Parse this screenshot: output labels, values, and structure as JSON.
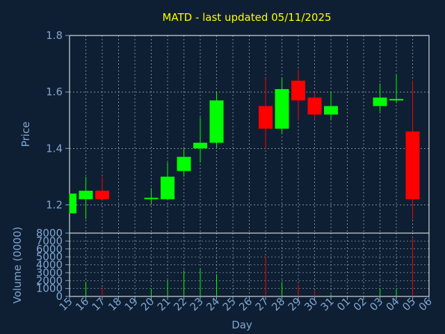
{
  "chart_data": {
    "type": "candlestick",
    "title": "MATD - last updated 05/11/2025",
    "xlabel": "Day",
    "price_panel": {
      "ylabel": "Price",
      "ylim": [
        1.1,
        1.8
      ],
      "yticks": [
        "1.2",
        "1.4",
        "1.6",
        "1.8"
      ],
      "grid": true
    },
    "volume_panel": {
      "ylabel": "Volume (0000)",
      "ylim": [
        0,
        8000
      ],
      "yticks": [
        "0",
        "1000",
        "2000",
        "3000",
        "4000",
        "5000",
        "6000",
        "7000",
        "8000"
      ],
      "grid": true
    },
    "x_ticks": [
      "15",
      "16",
      "17",
      "18",
      "19",
      "20",
      "21",
      "22",
      "23",
      "24",
      "25",
      "26",
      "27",
      "28",
      "29",
      "30",
      "31",
      "01",
      "02",
      "03",
      "04",
      "05",
      "06"
    ],
    "candles": [
      {
        "day": "15",
        "open": 1.17,
        "high": 1.24,
        "low": 1.17,
        "close": 1.24,
        "volume": 0
      },
      {
        "day": "16",
        "open": 1.22,
        "high": 1.3,
        "low": 1.15,
        "close": 1.25,
        "volume": 1800
      },
      {
        "day": "17",
        "open": 1.25,
        "high": 1.3,
        "low": 1.22,
        "close": 1.22,
        "volume": 1200
      },
      {
        "day": "20",
        "open": 1.22,
        "high": 1.26,
        "low": 1.2,
        "close": 1.225,
        "volume": 1000
      },
      {
        "day": "21",
        "open": 1.22,
        "high": 1.35,
        "low": 1.22,
        "close": 1.3,
        "volume": 2000
      },
      {
        "day": "22",
        "open": 1.32,
        "high": 1.4,
        "low": 1.3,
        "close": 1.37,
        "volume": 3300
      },
      {
        "day": "23",
        "open": 1.4,
        "high": 1.51,
        "low": 1.35,
        "close": 1.42,
        "volume": 3500
      },
      {
        "day": "24",
        "open": 1.42,
        "high": 1.6,
        "low": 1.4,
        "close": 1.57,
        "volume": 2800
      },
      {
        "day": "27",
        "open": 1.55,
        "high": 1.65,
        "low": 1.4,
        "close": 1.47,
        "volume": 5000
      },
      {
        "day": "28",
        "open": 1.47,
        "high": 1.65,
        "low": 1.45,
        "close": 1.61,
        "volume": 1800
      },
      {
        "day": "29",
        "open": 1.64,
        "high": 1.68,
        "low": 1.5,
        "close": 1.57,
        "volume": 1500
      },
      {
        "day": "30",
        "open": 1.58,
        "high": 1.6,
        "low": 1.5,
        "close": 1.52,
        "volume": 700
      },
      {
        "day": "31",
        "open": 1.52,
        "high": 1.6,
        "low": 1.5,
        "close": 1.55,
        "volume": 300
      },
      {
        "day": "03",
        "open": 1.55,
        "high": 1.63,
        "low": 1.53,
        "close": 1.58,
        "volume": 1000
      },
      {
        "day": "04",
        "open": 1.57,
        "high": 1.66,
        "low": 1.56,
        "close": 1.575,
        "volume": 900
      },
      {
        "day": "05",
        "open": 1.46,
        "high": 1.64,
        "low": 1.15,
        "close": 1.22,
        "volume": 7300
      }
    ],
    "colors": {
      "background": "#0f1f33",
      "axis": "#7fa7d4",
      "title": "#ffff00",
      "grid": "#c8d2dc",
      "up": "#00ff00",
      "down": "#ff0000",
      "frame": "#ffffff"
    }
  }
}
